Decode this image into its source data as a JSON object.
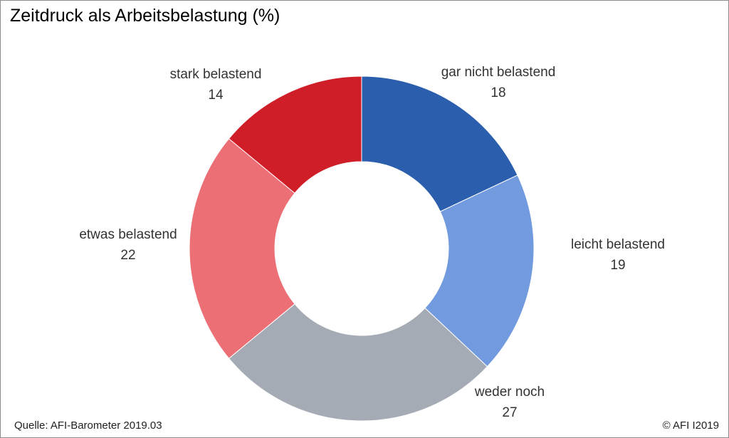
{
  "title": "Zeitdruck als Arbeitsbelastung (%)",
  "source": "Quelle: AFI-Barometer 2019.03",
  "copyright": "© AFI I2019",
  "chart_data": {
    "type": "pie",
    "variant": "donut",
    "title": "Zeitdruck als Arbeitsbelastung (%)",
    "legend": "none",
    "slices": [
      {
        "label": "gar nicht belastend",
        "value": 18,
        "color": "#2b5fad"
      },
      {
        "label": "leicht belastend",
        "value": 19,
        "color": "#729ade"
      },
      {
        "label": "weder noch",
        "value": 27,
        "color": "#a4abb4"
      },
      {
        "label": "etwas belastend",
        "value": 22,
        "color": "#eb6f75"
      },
      {
        "label": "stark belastend",
        "value": 14,
        "color": "#cf1e28"
      }
    ]
  }
}
